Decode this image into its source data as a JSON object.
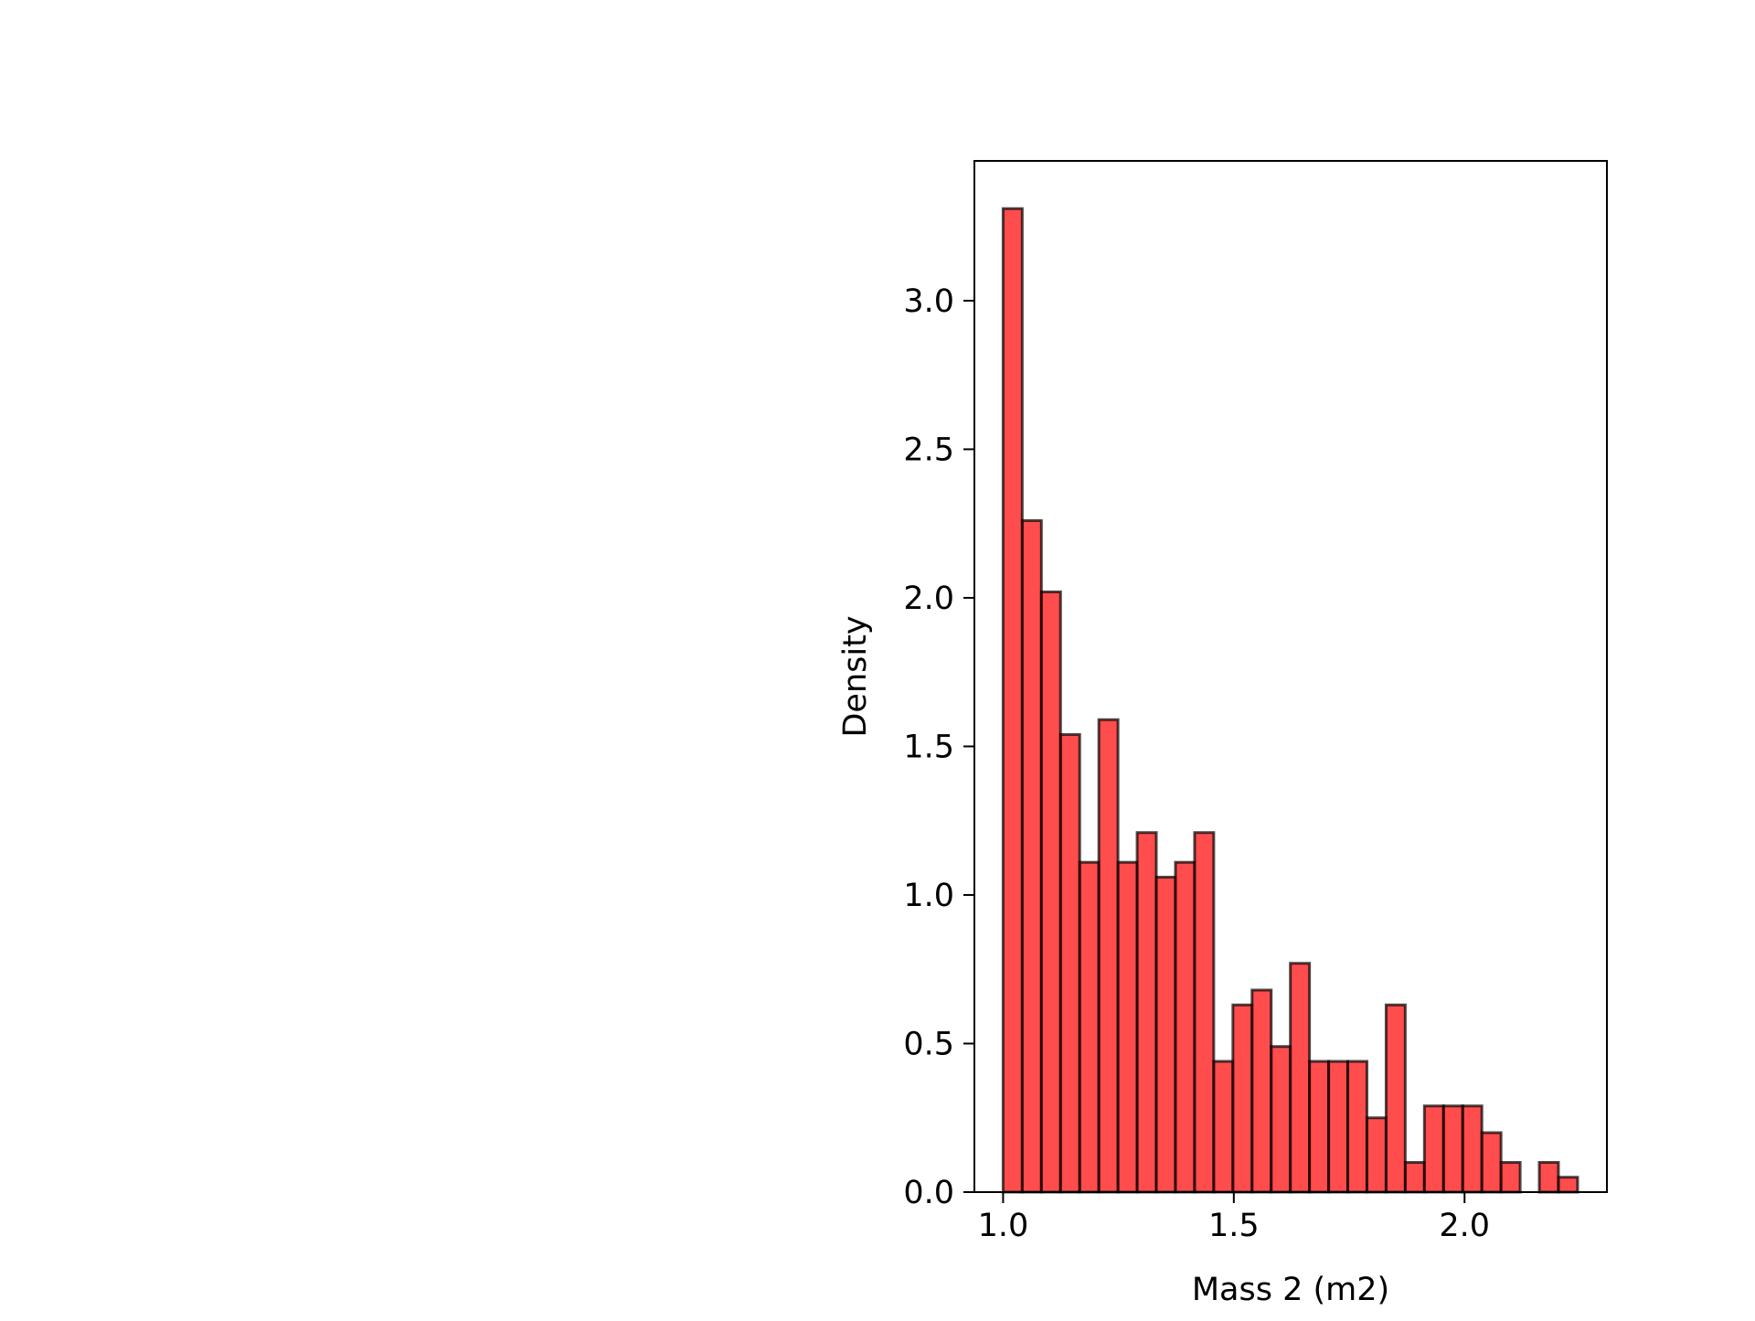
{
  "chart_data": {
    "type": "bar",
    "title": "",
    "xlabel": "Mass 2 (m2)",
    "ylabel": "Density",
    "bin_start": 1.0,
    "bin_width": 0.0415,
    "values": [
      3.31,
      2.26,
      2.02,
      1.54,
      1.11,
      1.59,
      1.11,
      1.21,
      1.06,
      1.11,
      1.21,
      0.44,
      0.63,
      0.68,
      0.49,
      0.77,
      0.44,
      0.44,
      0.44,
      0.25,
      0.63,
      0.1,
      0.29,
      0.29,
      0.29,
      0.2,
      0.1,
      0.0,
      0.1,
      0.05
    ],
    "xlim": [
      0.9378,
      2.3085
    ],
    "ylim": [
      0.0,
      3.4705
    ],
    "xticks": [
      {
        "value": 1.0,
        "label": "1.0"
      },
      {
        "value": 1.5,
        "label": "1.5"
      },
      {
        "value": 2.0,
        "label": "2.0"
      }
    ],
    "yticks": [
      {
        "value": 0.0,
        "label": "0.0"
      },
      {
        "value": 0.5,
        "label": "0.5"
      },
      {
        "value": 1.0,
        "label": "1.0"
      },
      {
        "value": 1.5,
        "label": "1.5"
      },
      {
        "value": 2.0,
        "label": "2.0"
      },
      {
        "value": 2.5,
        "label": "2.5"
      },
      {
        "value": 3.0,
        "label": "3.0"
      }
    ],
    "grid": false,
    "colors": {
      "bar_fill": "#ff0000",
      "bar_fill_opacity": 0.7,
      "bar_edge": "#000000",
      "axes": "#000000"
    }
  }
}
